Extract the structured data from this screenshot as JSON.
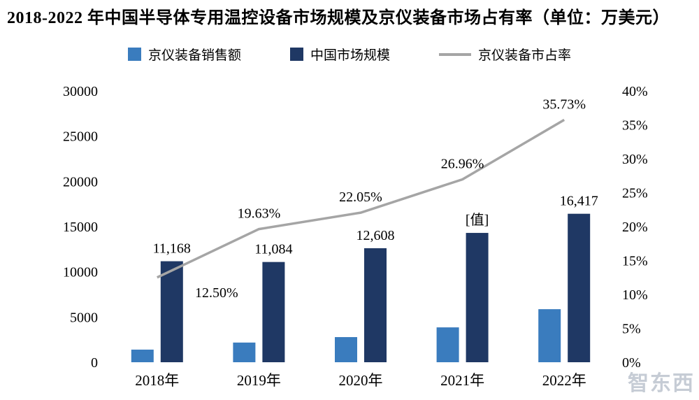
{
  "chart": {
    "title": "2018-2022 年中国半导体专用温控设备市场规模及京仪装备市场占有率（单位：万美元）",
    "watermark": "智东西"
  },
  "chart_data": {
    "type": "bar+line",
    "title": "2018-2022 年中国半导体专用温控设备市场规模及京仪装备市场占有率（单位：万美元）",
    "legend_position": "top",
    "grid": false,
    "categories": [
      "2018年",
      "2019年",
      "2020年",
      "2021年",
      "2022年"
    ],
    "series": [
      {
        "name": "京仪装备销售额",
        "type": "bar",
        "axis": "left",
        "color": "#3a7cbe",
        "values": [
          1396,
          2176,
          2780,
          3855,
          5866
        ],
        "labels": [
          "",
          "",
          "",
          "",
          ""
        ]
      },
      {
        "name": "中国市场规模",
        "type": "bar",
        "axis": "left",
        "color": "#1f3864",
        "values": [
          11168,
          11084,
          12608,
          14300,
          16417
        ],
        "labels": [
          "11,168",
          "11,084",
          "12,608",
          "[值]",
          "16,417"
        ]
      },
      {
        "name": "京仪装备市占率",
        "type": "line",
        "axis": "right",
        "color": "#a5a5a5",
        "values": [
          12.5,
          19.63,
          22.05,
          26.96,
          35.73
        ],
        "labels": [
          "12.50%",
          "19.63%",
          "22.05%",
          "26.96%",
          "35.73%"
        ]
      }
    ],
    "left_axis": {
      "min": 0,
      "max": 30000,
      "step": 5000,
      "ticks": [
        "0",
        "5000",
        "10000",
        "15000",
        "20000",
        "25000",
        "30000"
      ]
    },
    "right_axis": {
      "min": 0,
      "max": 40,
      "step": 5,
      "ticks": [
        "0%",
        "5%",
        "10%",
        "15%",
        "20%",
        "25%",
        "30%",
        "35%",
        "40%"
      ]
    }
  }
}
